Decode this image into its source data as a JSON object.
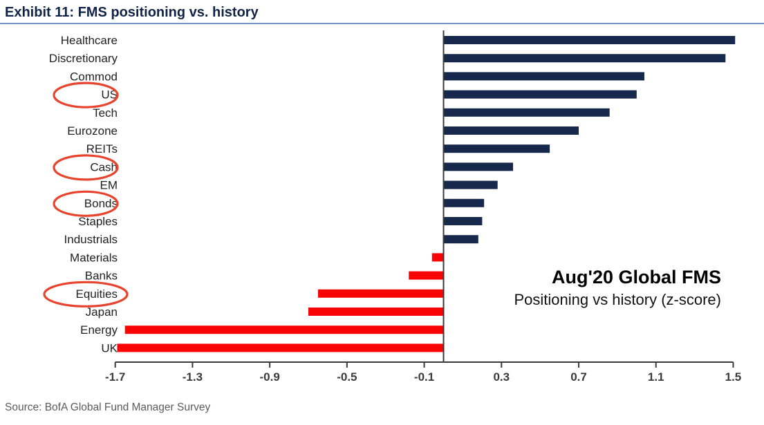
{
  "header": {
    "title": "Exhibit 11: FMS positioning vs. history"
  },
  "annotation": {
    "line1": "Aug'20 Global FMS",
    "line2": "Positioning vs history (z-score)"
  },
  "source": "Source: BofA Global Fund Manager Survey",
  "colors": {
    "positive_bar": "#16294d",
    "negative_bar": "#fa0505",
    "highlight_circle": "#e8432c",
    "title_text": "#112448",
    "title_underline": "#7296c2",
    "axis": "#3a3a3a"
  },
  "chart_data": {
    "type": "bar",
    "orientation": "horizontal",
    "title": "Aug'20 Global FMS",
    "subtitle": "Positioning vs history (z-score)",
    "categories": [
      "Healthcare",
      "Discretionary",
      "Commod",
      "US",
      "Tech",
      "Eurozone",
      "REITs",
      "Cash",
      "EM",
      "Bonds",
      "Staples",
      "Industrials",
      "Materials",
      "Banks",
      "Equities",
      "Japan",
      "Energy",
      "UK"
    ],
    "values": [
      1.51,
      1.46,
      1.04,
      1.0,
      0.86,
      0.7,
      0.55,
      0.36,
      0.28,
      0.21,
      0.2,
      0.18,
      -0.06,
      -0.18,
      -0.65,
      -0.7,
      -1.65,
      -1.69
    ],
    "circled_categories": [
      "US",
      "Cash",
      "Bonds",
      "Equities"
    ],
    "x_ticks": [
      -1.7,
      -1.3,
      -0.9,
      -0.5,
      -0.1,
      0.3,
      0.7,
      1.1,
      1.5
    ],
    "xlim": [
      -1.7,
      1.5
    ],
    "xlabel": "",
    "ylabel": "",
    "grid": false,
    "legend": false,
    "zero_baseline": true
  }
}
